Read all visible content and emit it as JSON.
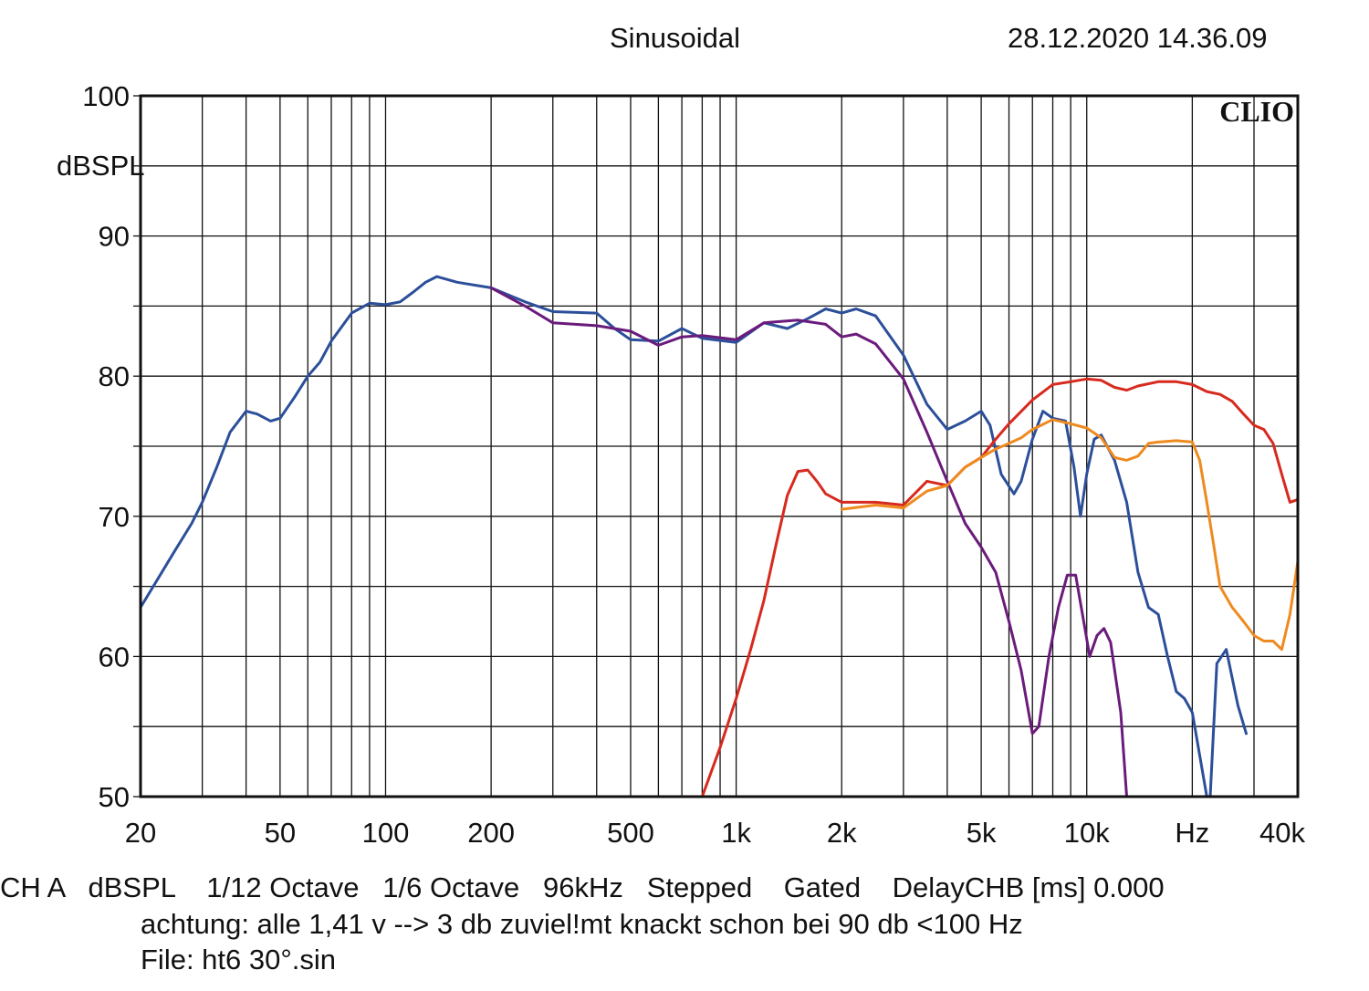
{
  "header": {
    "mode": "Sinusoidal",
    "datetime": "28.12.2020 14.36.09"
  },
  "brand": "CLIO",
  "footer": {
    "line1": "CH A   dBSPL    1/12 Octave   1/6 Octave   96kHz   Stepped    Gated    DelayCHB [ms] 0.000",
    "line2": "achtung: alle 1,41 v --> 3 db zuviel!mt knackt schon bei 90 db <100 Hz",
    "line3": "File: ht6 30°.sin"
  },
  "chart_data": {
    "type": "line",
    "x_scale": "log",
    "xlim": [
      20,
      40000
    ],
    "ylim": [
      50,
      100
    ],
    "ylabel": "dBSPL",
    "grid": true,
    "x_tick_labels": [
      {
        "v": 20,
        "t": "20"
      },
      {
        "v": 50,
        "t": "50"
      },
      {
        "v": 100,
        "t": "100"
      },
      {
        "v": 200,
        "t": "200"
      },
      {
        "v": 500,
        "t": "500"
      },
      {
        "v": 1000,
        "t": "1k"
      },
      {
        "v": 2000,
        "t": "2k"
      },
      {
        "v": 5000,
        "t": "5k"
      },
      {
        "v": 10000,
        "t": "10k"
      },
      {
        "v": 20000,
        "t": "Hz"
      },
      {
        "v": 40000,
        "t": "40k"
      }
    ],
    "y_tick_labels": [
      {
        "v": 100,
        "t": "100"
      },
      {
        "v": 90,
        "t": "90"
      },
      {
        "v": 80,
        "t": "80"
      },
      {
        "v": 70,
        "t": "70"
      },
      {
        "v": 60,
        "t": "60"
      },
      {
        "v": 50,
        "t": "50"
      }
    ],
    "series": [
      {
        "color": "#2c4f9a",
        "points": [
          [
            20,
            63.5
          ],
          [
            23,
            66
          ],
          [
            25,
            67.5
          ],
          [
            28,
            69.5
          ],
          [
            30,
            71
          ],
          [
            33,
            73.5
          ],
          [
            36,
            76
          ],
          [
            40,
            77.5
          ],
          [
            43,
            77.3
          ],
          [
            47,
            76.8
          ],
          [
            50,
            77
          ],
          [
            55,
            78.5
          ],
          [
            60,
            80
          ],
          [
            65,
            81
          ],
          [
            70,
            82.5
          ],
          [
            80,
            84.5
          ],
          [
            90,
            85.2
          ],
          [
            100,
            85.1
          ],
          [
            110,
            85.3
          ],
          [
            120,
            86
          ],
          [
            130,
            86.7
          ],
          [
            140,
            87.1
          ],
          [
            160,
            86.7
          ],
          [
            200,
            86.3
          ],
          [
            250,
            85.3
          ],
          [
            300,
            84.6
          ],
          [
            400,
            84.5
          ],
          [
            450,
            83.4
          ],
          [
            500,
            82.6
          ],
          [
            600,
            82.5
          ],
          [
            700,
            83.4
          ],
          [
            800,
            82.7
          ],
          [
            1000,
            82.4
          ],
          [
            1200,
            83.8
          ],
          [
            1400,
            83.4
          ],
          [
            1600,
            84.1
          ],
          [
            1800,
            84.8
          ],
          [
            2000,
            84.5
          ],
          [
            2200,
            84.8
          ],
          [
            2500,
            84.3
          ],
          [
            3000,
            81.5
          ],
          [
            3500,
            78
          ],
          [
            4000,
            76.2
          ],
          [
            4500,
            76.8
          ],
          [
            5000,
            77.5
          ],
          [
            5300,
            76.5
          ],
          [
            5700,
            73
          ],
          [
            6200,
            71.6
          ],
          [
            6500,
            72.5
          ],
          [
            7000,
            75.5
          ],
          [
            7500,
            77.5
          ],
          [
            8000,
            77
          ],
          [
            8700,
            76.8
          ],
          [
            9200,
            73.5
          ],
          [
            9600,
            70
          ],
          [
            10000,
            73
          ],
          [
            10500,
            75.5
          ],
          [
            11000,
            75.8
          ],
          [
            12000,
            74
          ],
          [
            13000,
            71
          ],
          [
            14000,
            66
          ],
          [
            15000,
            63.5
          ],
          [
            16000,
            63
          ],
          [
            17000,
            60
          ],
          [
            18000,
            57.5
          ],
          [
            19000,
            57
          ],
          [
            20000,
            56
          ],
          [
            22000,
            50
          ],
          [
            22500,
            50
          ],
          [
            23500,
            59.5
          ],
          [
            25000,
            60.5
          ],
          [
            27000,
            56.5
          ],
          [
            28500,
            54.5
          ]
        ]
      },
      {
        "color": "#6a1b7c",
        "points": [
          [
            200,
            86.3
          ],
          [
            250,
            85
          ],
          [
            300,
            83.8
          ],
          [
            400,
            83.6
          ],
          [
            500,
            83.2
          ],
          [
            600,
            82.2
          ],
          [
            700,
            82.8
          ],
          [
            800,
            82.9
          ],
          [
            1000,
            82.6
          ],
          [
            1200,
            83.8
          ],
          [
            1500,
            84
          ],
          [
            1800,
            83.7
          ],
          [
            2000,
            82.8
          ],
          [
            2200,
            83
          ],
          [
            2500,
            82.3
          ],
          [
            3000,
            79.8
          ],
          [
            3500,
            76
          ],
          [
            4000,
            72.5
          ],
          [
            4500,
            69.5
          ],
          [
            5000,
            67.8
          ],
          [
            5500,
            66
          ],
          [
            6000,
            62.5
          ],
          [
            6500,
            59
          ],
          [
            7000,
            54.5
          ],
          [
            7300,
            55
          ],
          [
            7800,
            60
          ],
          [
            8300,
            63.5
          ],
          [
            8800,
            65.8
          ],
          [
            9300,
            65.8
          ],
          [
            9800,
            62.5
          ],
          [
            10200,
            60
          ],
          [
            10700,
            61.5
          ],
          [
            11200,
            62
          ],
          [
            11700,
            61
          ],
          [
            12500,
            56
          ],
          [
            13000,
            50
          ]
        ]
      },
      {
        "color": "#d72a1e",
        "points": [
          [
            800,
            50
          ],
          [
            900,
            53.5
          ],
          [
            1000,
            57
          ],
          [
            1100,
            60.5
          ],
          [
            1200,
            64
          ],
          [
            1300,
            68
          ],
          [
            1400,
            71.5
          ],
          [
            1500,
            73.2
          ],
          [
            1600,
            73.3
          ],
          [
            1700,
            72.5
          ],
          [
            1800,
            71.6
          ],
          [
            2000,
            71
          ],
          [
            2500,
            71
          ],
          [
            3000,
            70.8
          ],
          [
            3500,
            72.5
          ],
          [
            4000,
            72.2
          ],
          [
            4500,
            73.5
          ],
          [
            5000,
            74.2
          ],
          [
            5500,
            75.5
          ],
          [
            6000,
            76.6
          ],
          [
            7000,
            78.3
          ],
          [
            8000,
            79.4
          ],
          [
            9000,
            79.6
          ],
          [
            10000,
            79.8
          ],
          [
            11000,
            79.7
          ],
          [
            12000,
            79.2
          ],
          [
            13000,
            79
          ],
          [
            14000,
            79.3
          ],
          [
            16000,
            79.6
          ],
          [
            18000,
            79.6
          ],
          [
            20000,
            79.4
          ],
          [
            22000,
            78.9
          ],
          [
            24000,
            78.7
          ],
          [
            26000,
            78.2
          ],
          [
            28000,
            77.3
          ],
          [
            30000,
            76.5
          ],
          [
            32000,
            76.2
          ],
          [
            34000,
            75.2
          ],
          [
            36000,
            73
          ],
          [
            38000,
            71
          ],
          [
            40000,
            71.2
          ],
          [
            44000,
            72
          ]
        ]
      },
      {
        "color": "#ee8a1f",
        "points": [
          [
            2000,
            70.5
          ],
          [
            2500,
            70.8
          ],
          [
            3000,
            70.6
          ],
          [
            3500,
            71.8
          ],
          [
            4000,
            72.2
          ],
          [
            4500,
            73.5
          ],
          [
            5000,
            74.2
          ],
          [
            5500,
            74.8
          ],
          [
            6000,
            75.2
          ],
          [
            6500,
            75.6
          ],
          [
            7000,
            76.2
          ],
          [
            8000,
            76.9
          ],
          [
            9000,
            76.6
          ],
          [
            10000,
            76.3
          ],
          [
            11000,
            75.6
          ],
          [
            12000,
            74.2
          ],
          [
            13000,
            74
          ],
          [
            14000,
            74.3
          ],
          [
            15000,
            75.2
          ],
          [
            16000,
            75.3
          ],
          [
            18000,
            75.4
          ],
          [
            20000,
            75.3
          ],
          [
            21000,
            74
          ],
          [
            22000,
            71
          ],
          [
            23000,
            68
          ],
          [
            24000,
            65
          ],
          [
            26000,
            63.5
          ],
          [
            28000,
            62.5
          ],
          [
            30000,
            61.5
          ],
          [
            32000,
            61.1
          ],
          [
            34000,
            61.1
          ],
          [
            36000,
            60.5
          ],
          [
            38000,
            63
          ],
          [
            40000,
            66.8
          ],
          [
            42000,
            66.8
          ],
          [
            44000,
            66.5
          ]
        ]
      }
    ]
  }
}
